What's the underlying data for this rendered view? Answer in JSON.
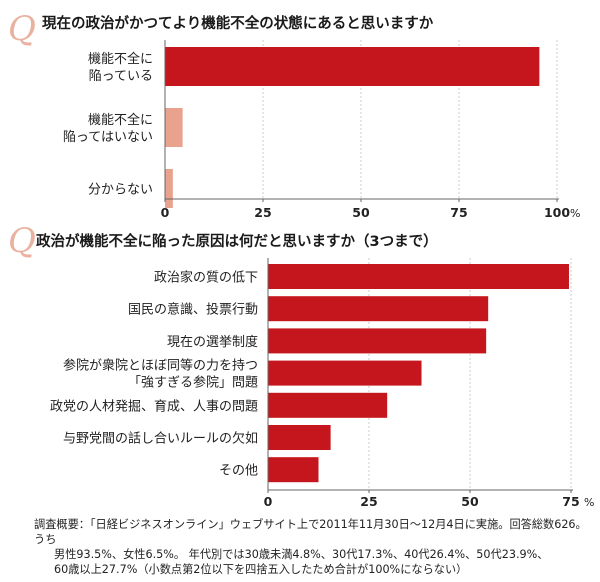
{
  "chart_data": [
    {
      "type": "bar",
      "orientation": "horizontal",
      "title": "現在の政治がかつてより機能不全の状態にあると思いますか",
      "categories": [
        [
          "機能不全に",
          "陥っている"
        ],
        [
          "機能不全に",
          "陥ってはいない"
        ],
        [
          "分からない"
        ]
      ],
      "values": [
        95.5,
        4.5,
        2
      ],
      "bar_colors": [
        "#c4161c",
        "#e8a28e",
        "#e8a28e"
      ],
      "xlim": [
        0,
        100
      ],
      "ticks": [
        "0",
        "25",
        "50",
        "75",
        "100"
      ],
      "unit": "%",
      "grid": true
    },
    {
      "type": "bar",
      "orientation": "horizontal",
      "title": "政治が機能不全に陥った原因は何だと思いますか（3つまで）",
      "categories": [
        [
          "政治家の質の低下"
        ],
        [
          "国民の意識、投票行動"
        ],
        [
          "現在の選挙制度"
        ],
        [
          "参院が衆院とほぼ同等の力を持つ",
          "「強すぎる参院」問題"
        ],
        [
          "政党の人材発掘、育成、人事の問題"
        ],
        [
          "与野党間の話し合いルールの欠如"
        ],
        [
          "その他"
        ]
      ],
      "values": [
        74.5,
        54.5,
        54,
        38,
        29.5,
        15.5,
        12.5
      ],
      "bar_colors": [
        "#c4161c"
      ],
      "xlim": [
        0,
        75
      ],
      "ticks": [
        "0",
        "25",
        "50",
        "75"
      ],
      "unit": "%",
      "grid": true
    }
  ],
  "decor": {
    "q_letter": "Q",
    "q_color": "#e9b2a0",
    "axis_color": "#888888",
    "grid_color": "#cccccc"
  },
  "footnote": {
    "lines": [
      "調査概要：「日経ビジネスオンライン」ウェブサイト上で2011年11月30日〜12月4日に実施。回答総数626。うち",
      "男性93.5%、女性6.5%。 年代別では30歳未満4.8%、30代17.3%、40代26.4%、50代23.9%、",
      "60歳以上27.7%（小数点第2位以下を四捨五入したため合計が100%にならない）"
    ]
  }
}
